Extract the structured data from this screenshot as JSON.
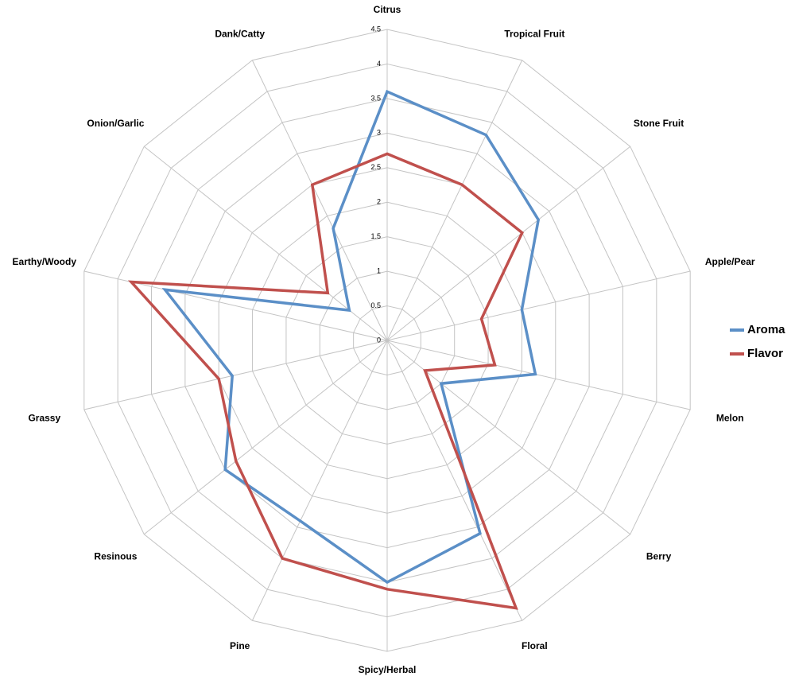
{
  "chart_data": {
    "type": "radar",
    "categories": [
      "Citrus",
      "Tropical Fruit",
      "Stone Fruit",
      "Apple/Pear",
      "Melon",
      "Berry",
      "Floral",
      "Spicy/Herbal",
      "Pine",
      "Resinous",
      "Grassy",
      "Earthy/Woody",
      "Onion/Garlic",
      "Dank/Catty"
    ],
    "series": [
      {
        "name": "Aroma",
        "color": "#5b8fc7",
        "values": [
          3.6,
          3.3,
          2.8,
          2.0,
          2.2,
          1.0,
          3.1,
          3.5,
          2.9,
          3.0,
          2.3,
          3.3,
          0.7,
          1.8
        ]
      },
      {
        "name": "Flavor",
        "color": "#c0504d",
        "values": [
          2.7,
          2.5,
          2.5,
          1.4,
          1.6,
          0.7,
          4.3,
          3.6,
          3.5,
          2.8,
          2.5,
          3.8,
          1.1,
          2.5
        ]
      }
    ],
    "ylim": [
      0,
      4.5
    ],
    "yticks": [
      0,
      0.5,
      1,
      1.5,
      2,
      2.5,
      3,
      3.5,
      4,
      4.5
    ],
    "grid": true,
    "legend": "right"
  }
}
